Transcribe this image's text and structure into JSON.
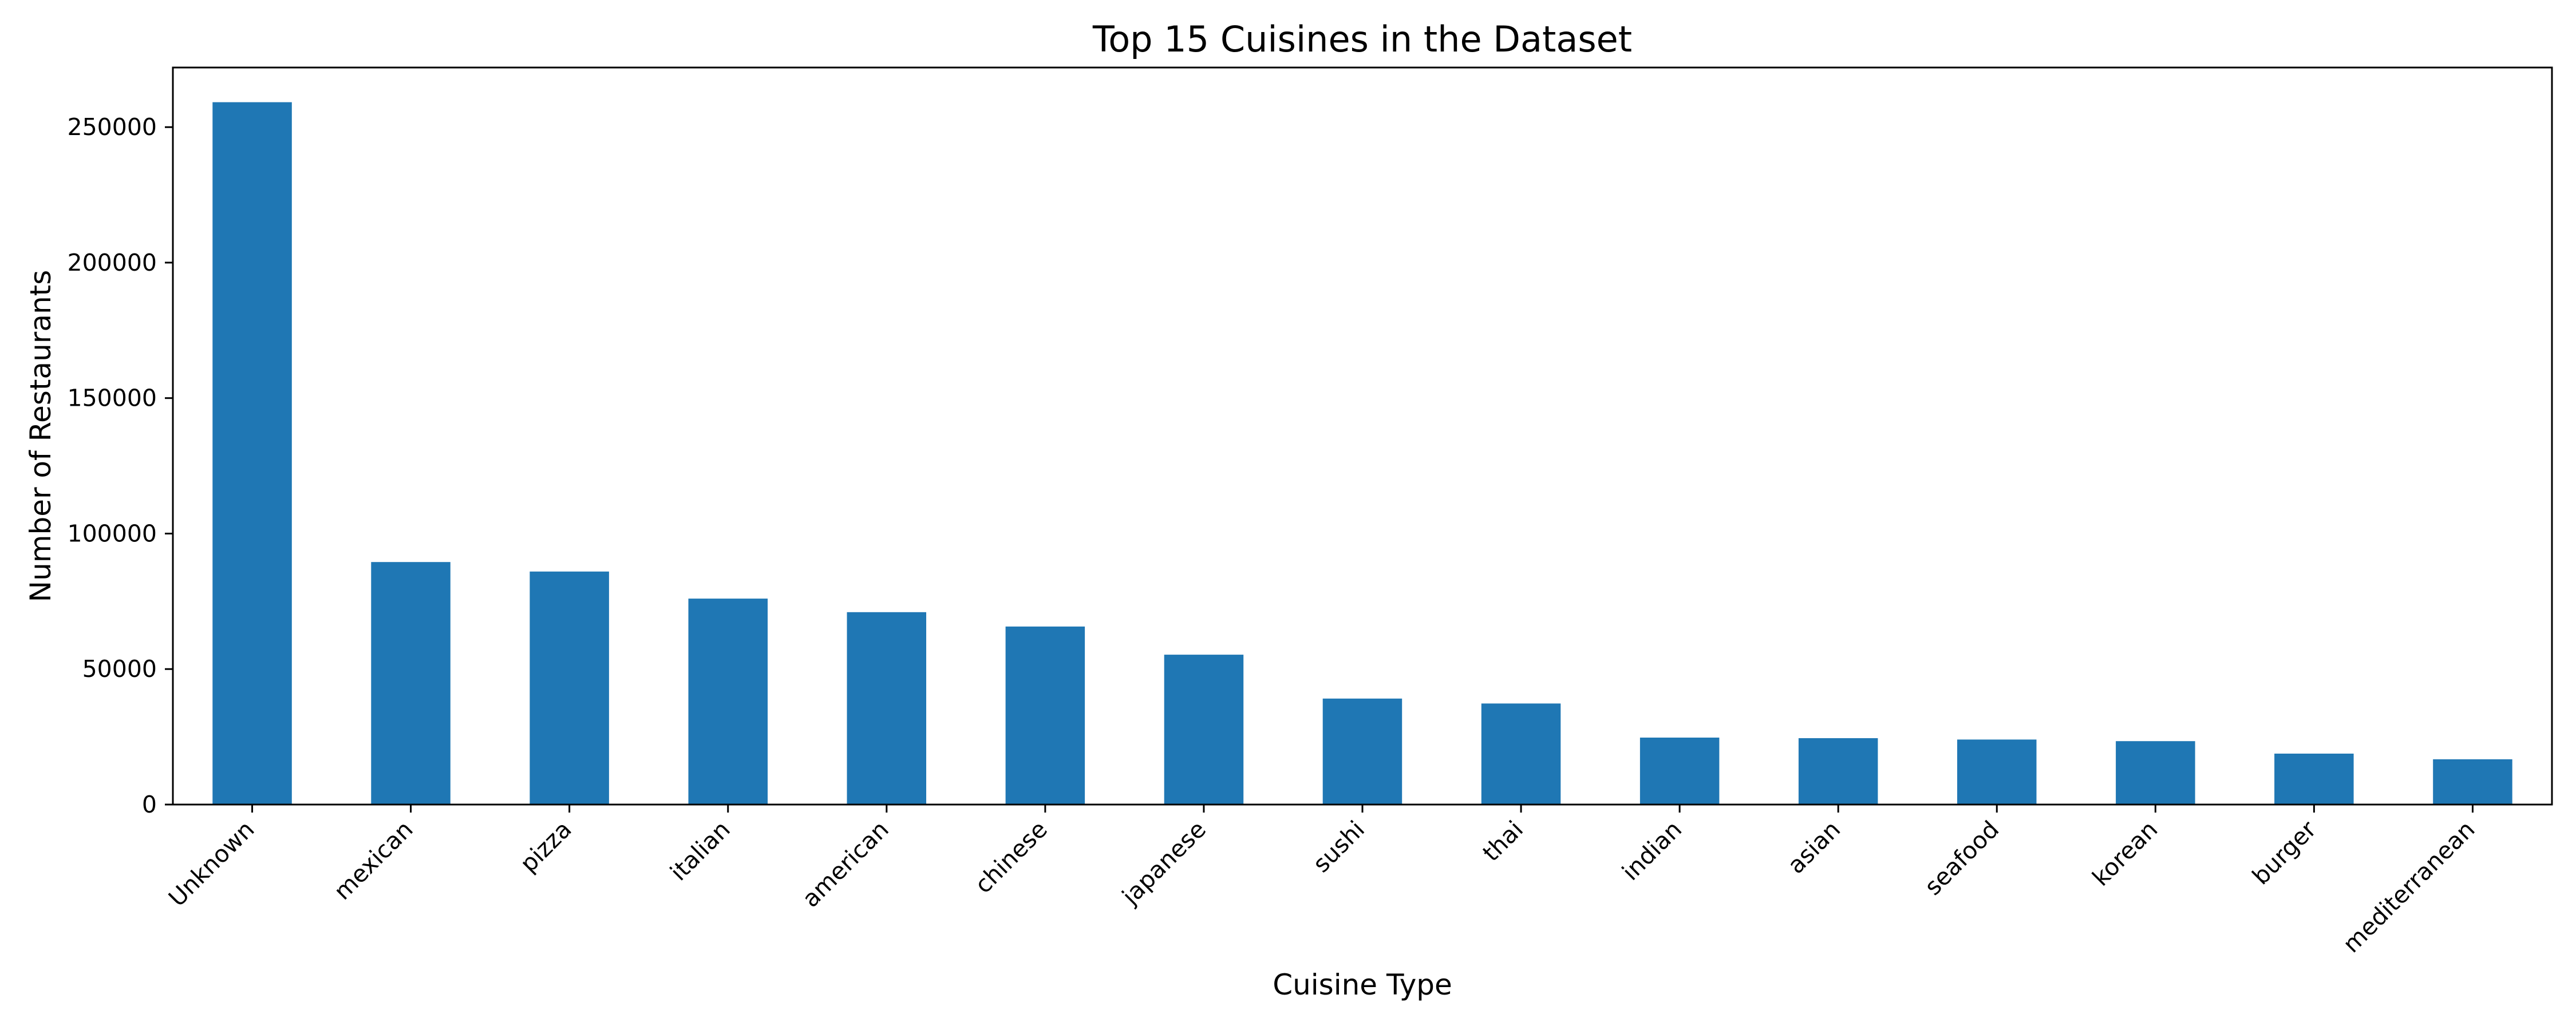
{
  "chart_data": {
    "type": "bar",
    "title": "Top 15 Cuisines in the Dataset",
    "xlabel": "Cuisine Type",
    "ylabel": "Number of Restaurants",
    "categories": [
      "Unknown",
      "mexican",
      "pizza",
      "italian",
      "american",
      "chinese",
      "japanese",
      "sushi",
      "thai",
      "indian",
      "asian",
      "seafood",
      "korean",
      "burger",
      "mediterranean"
    ],
    "values": [
      259200,
      89500,
      86000,
      76000,
      71000,
      65700,
      55300,
      39100,
      37300,
      24700,
      24500,
      24000,
      23400,
      18800,
      16700
    ],
    "ylim": [
      0,
      272000
    ],
    "yticks": [
      0,
      50000,
      100000,
      150000,
      200000,
      250000
    ],
    "bar_color": "#1f77b4",
    "grid": false,
    "legend": "none"
  }
}
